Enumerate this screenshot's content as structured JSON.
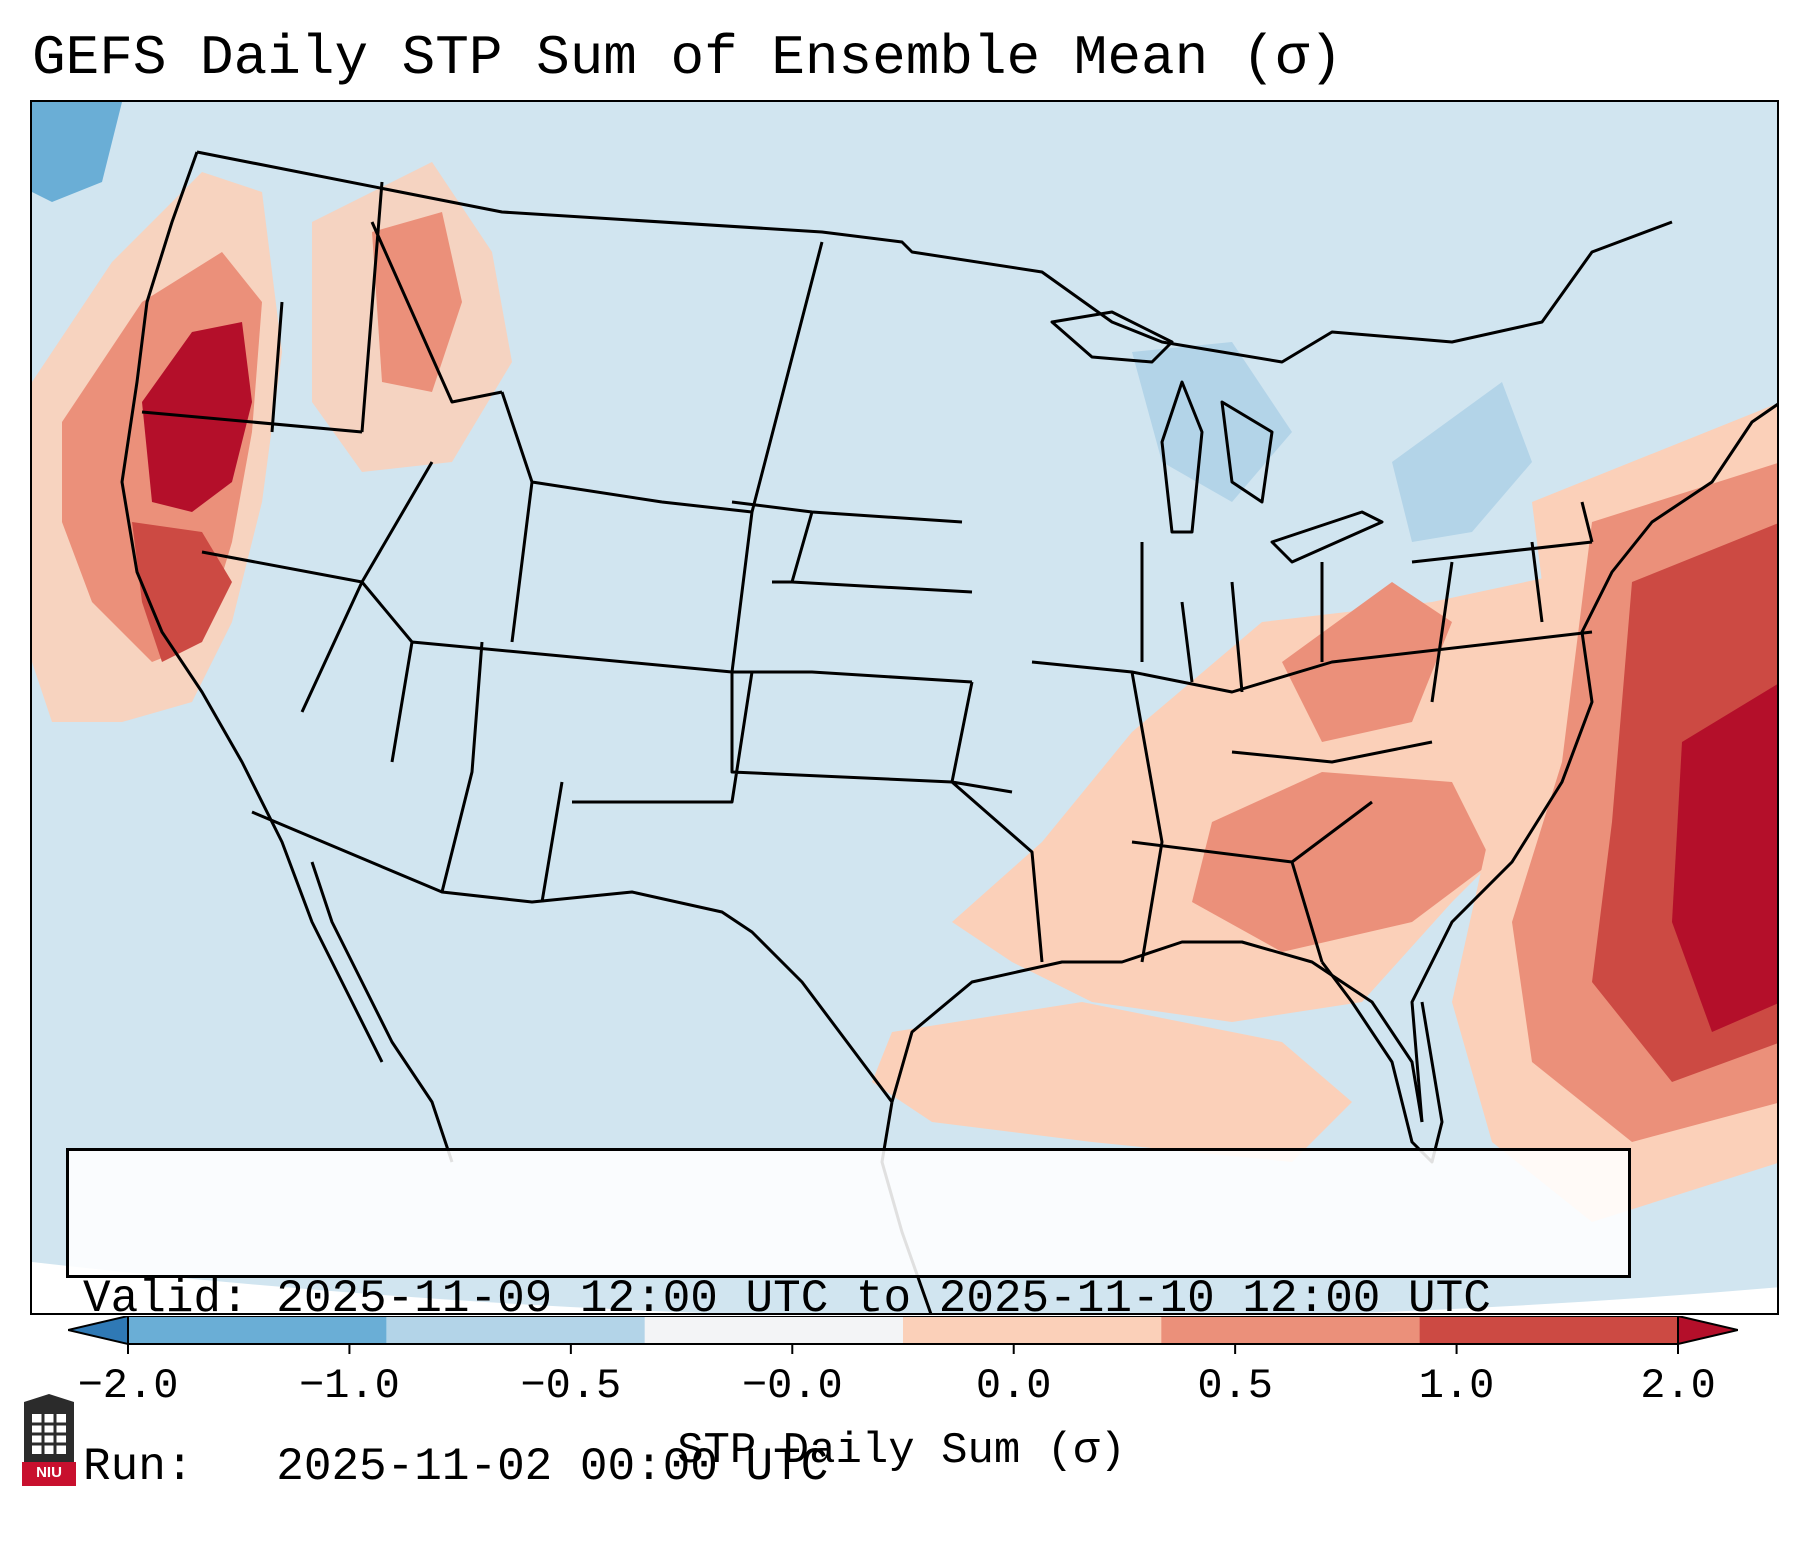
{
  "title": "GEFS Daily STP Sum of Ensemble Mean (σ)",
  "info": {
    "valid_line": "Valid: 2025-11-09 12:00 UTC to 2025-11-10 12:00 UTC",
    "run_line": "Run:   2025-11-02 00:00 UTC"
  },
  "colorbar": {
    "label": "STP Daily Sum (σ)",
    "ticks": [
      "−2.0",
      "−1.0",
      "−0.5",
      "−0.0",
      "0.0",
      "0.5",
      "1.0",
      "2.0"
    ],
    "colors": [
      "#2f79b5",
      "#6aaed6",
      "#b3d4e8",
      "#f3f4f6",
      "#fbd0b9",
      "#eb907a",
      "#cc4a43",
      "#b40f2a"
    ]
  },
  "map": {
    "background_color": "#d1e5f0",
    "region": "Contiguous United States",
    "anomaly_areas": [
      {
        "name": "Pacific Northwest coast",
        "level": "1.0 to 2.0"
      },
      {
        "name": "Northern California coast",
        "level": "0.5 to 2.0"
      },
      {
        "name": "Southeast US / Gulf Coast",
        "level": "0.0 to 1.0"
      },
      {
        "name": "Western Atlantic off East Coast",
        "level": "1.0 to 2.0"
      },
      {
        "name": "Great Lakes / New England",
        "level": "-0.5 to -0.0"
      }
    ]
  },
  "logo": {
    "text": "NIU"
  }
}
